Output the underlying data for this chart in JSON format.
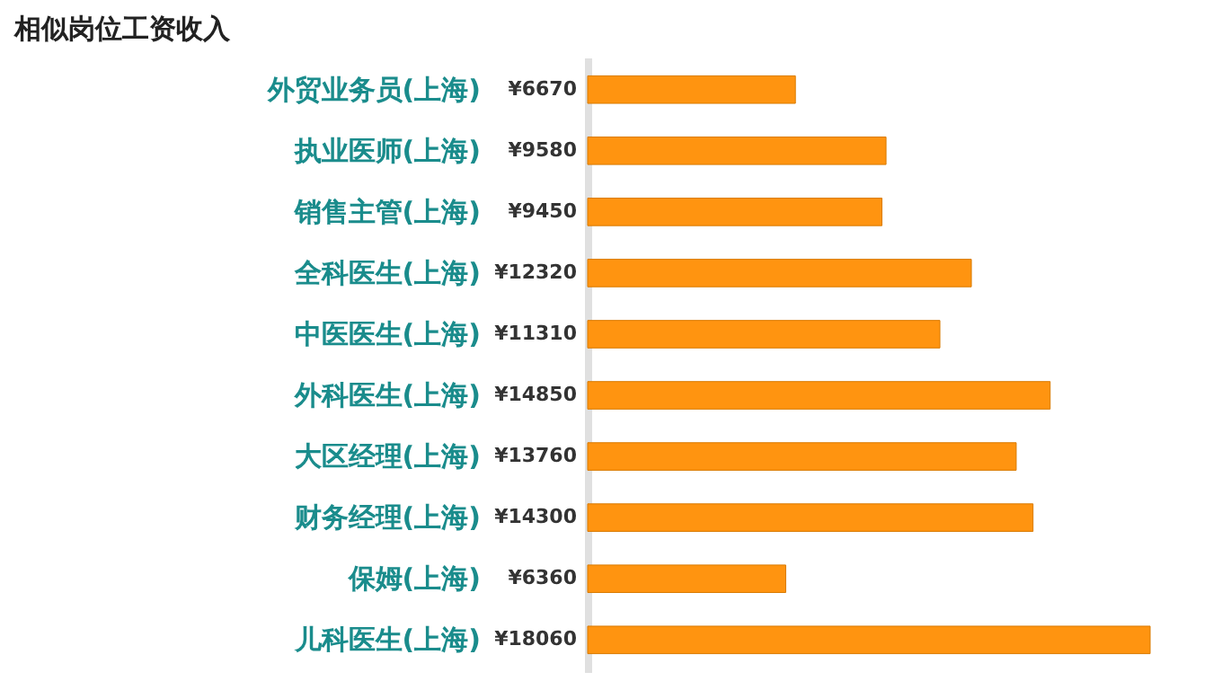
{
  "chart_data": {
    "type": "bar",
    "orientation": "horizontal",
    "title": "相似岗位工资收入",
    "categories": [
      "外贸业务员(上海)",
      "执业医师(上海)",
      "销售主管(上海)",
      "全科医生(上海)",
      "中医医生(上海)",
      "外科医生(上海)",
      "大区经理(上海)",
      "财务经理(上海)",
      "保姆(上海)",
      "儿科医生(上海)"
    ],
    "values": [
      6670,
      9580,
      9450,
      12320,
      11310,
      14850,
      13760,
      14300,
      6360,
      18060
    ],
    "value_labels": [
      "¥6670",
      "¥9580",
      "¥9450",
      "¥12320",
      "¥11310",
      "¥14850",
      "¥13760",
      "¥14300",
      "¥6360",
      "¥18060"
    ],
    "color": "#ff9410"
  }
}
